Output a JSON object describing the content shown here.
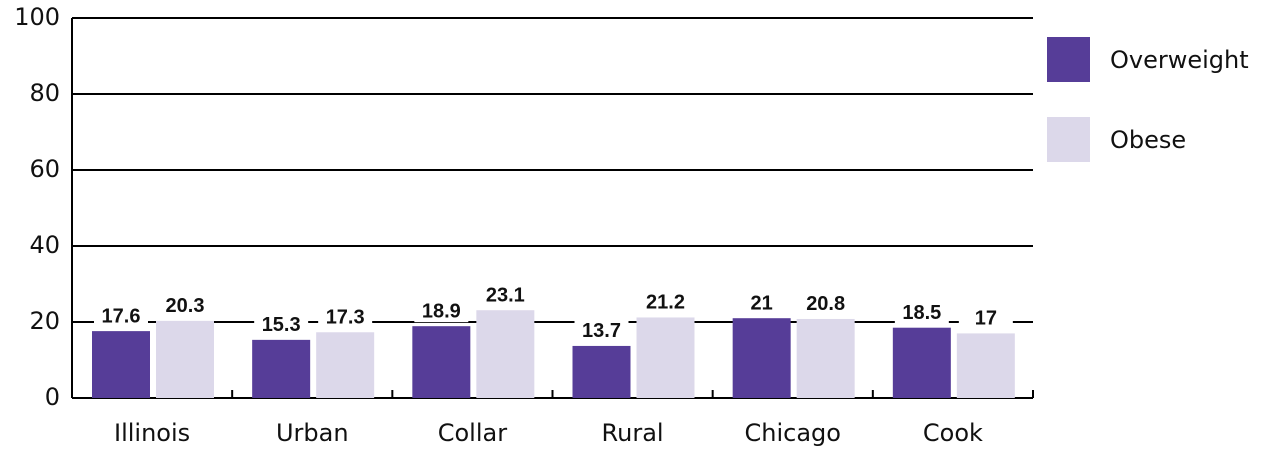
{
  "chart_data": {
    "type": "bar",
    "categories": [
      "Illinois",
      "Urban",
      "Collar",
      "Rural",
      "Chicago",
      "Cook"
    ],
    "series": [
      {
        "name": "Overweight",
        "color": "#563d98",
        "values": [
          17.6,
          15.3,
          18.9,
          13.7,
          21,
          18.5
        ]
      },
      {
        "name": "Obese",
        "color": "#dcd8ea",
        "values": [
          20.3,
          17.3,
          23.1,
          21.2,
          20.8,
          17
        ]
      }
    ],
    "ylim": [
      0,
      100
    ],
    "yticks": [
      0,
      20,
      40,
      60,
      80,
      100
    ],
    "grid": true,
    "legend": "right"
  }
}
